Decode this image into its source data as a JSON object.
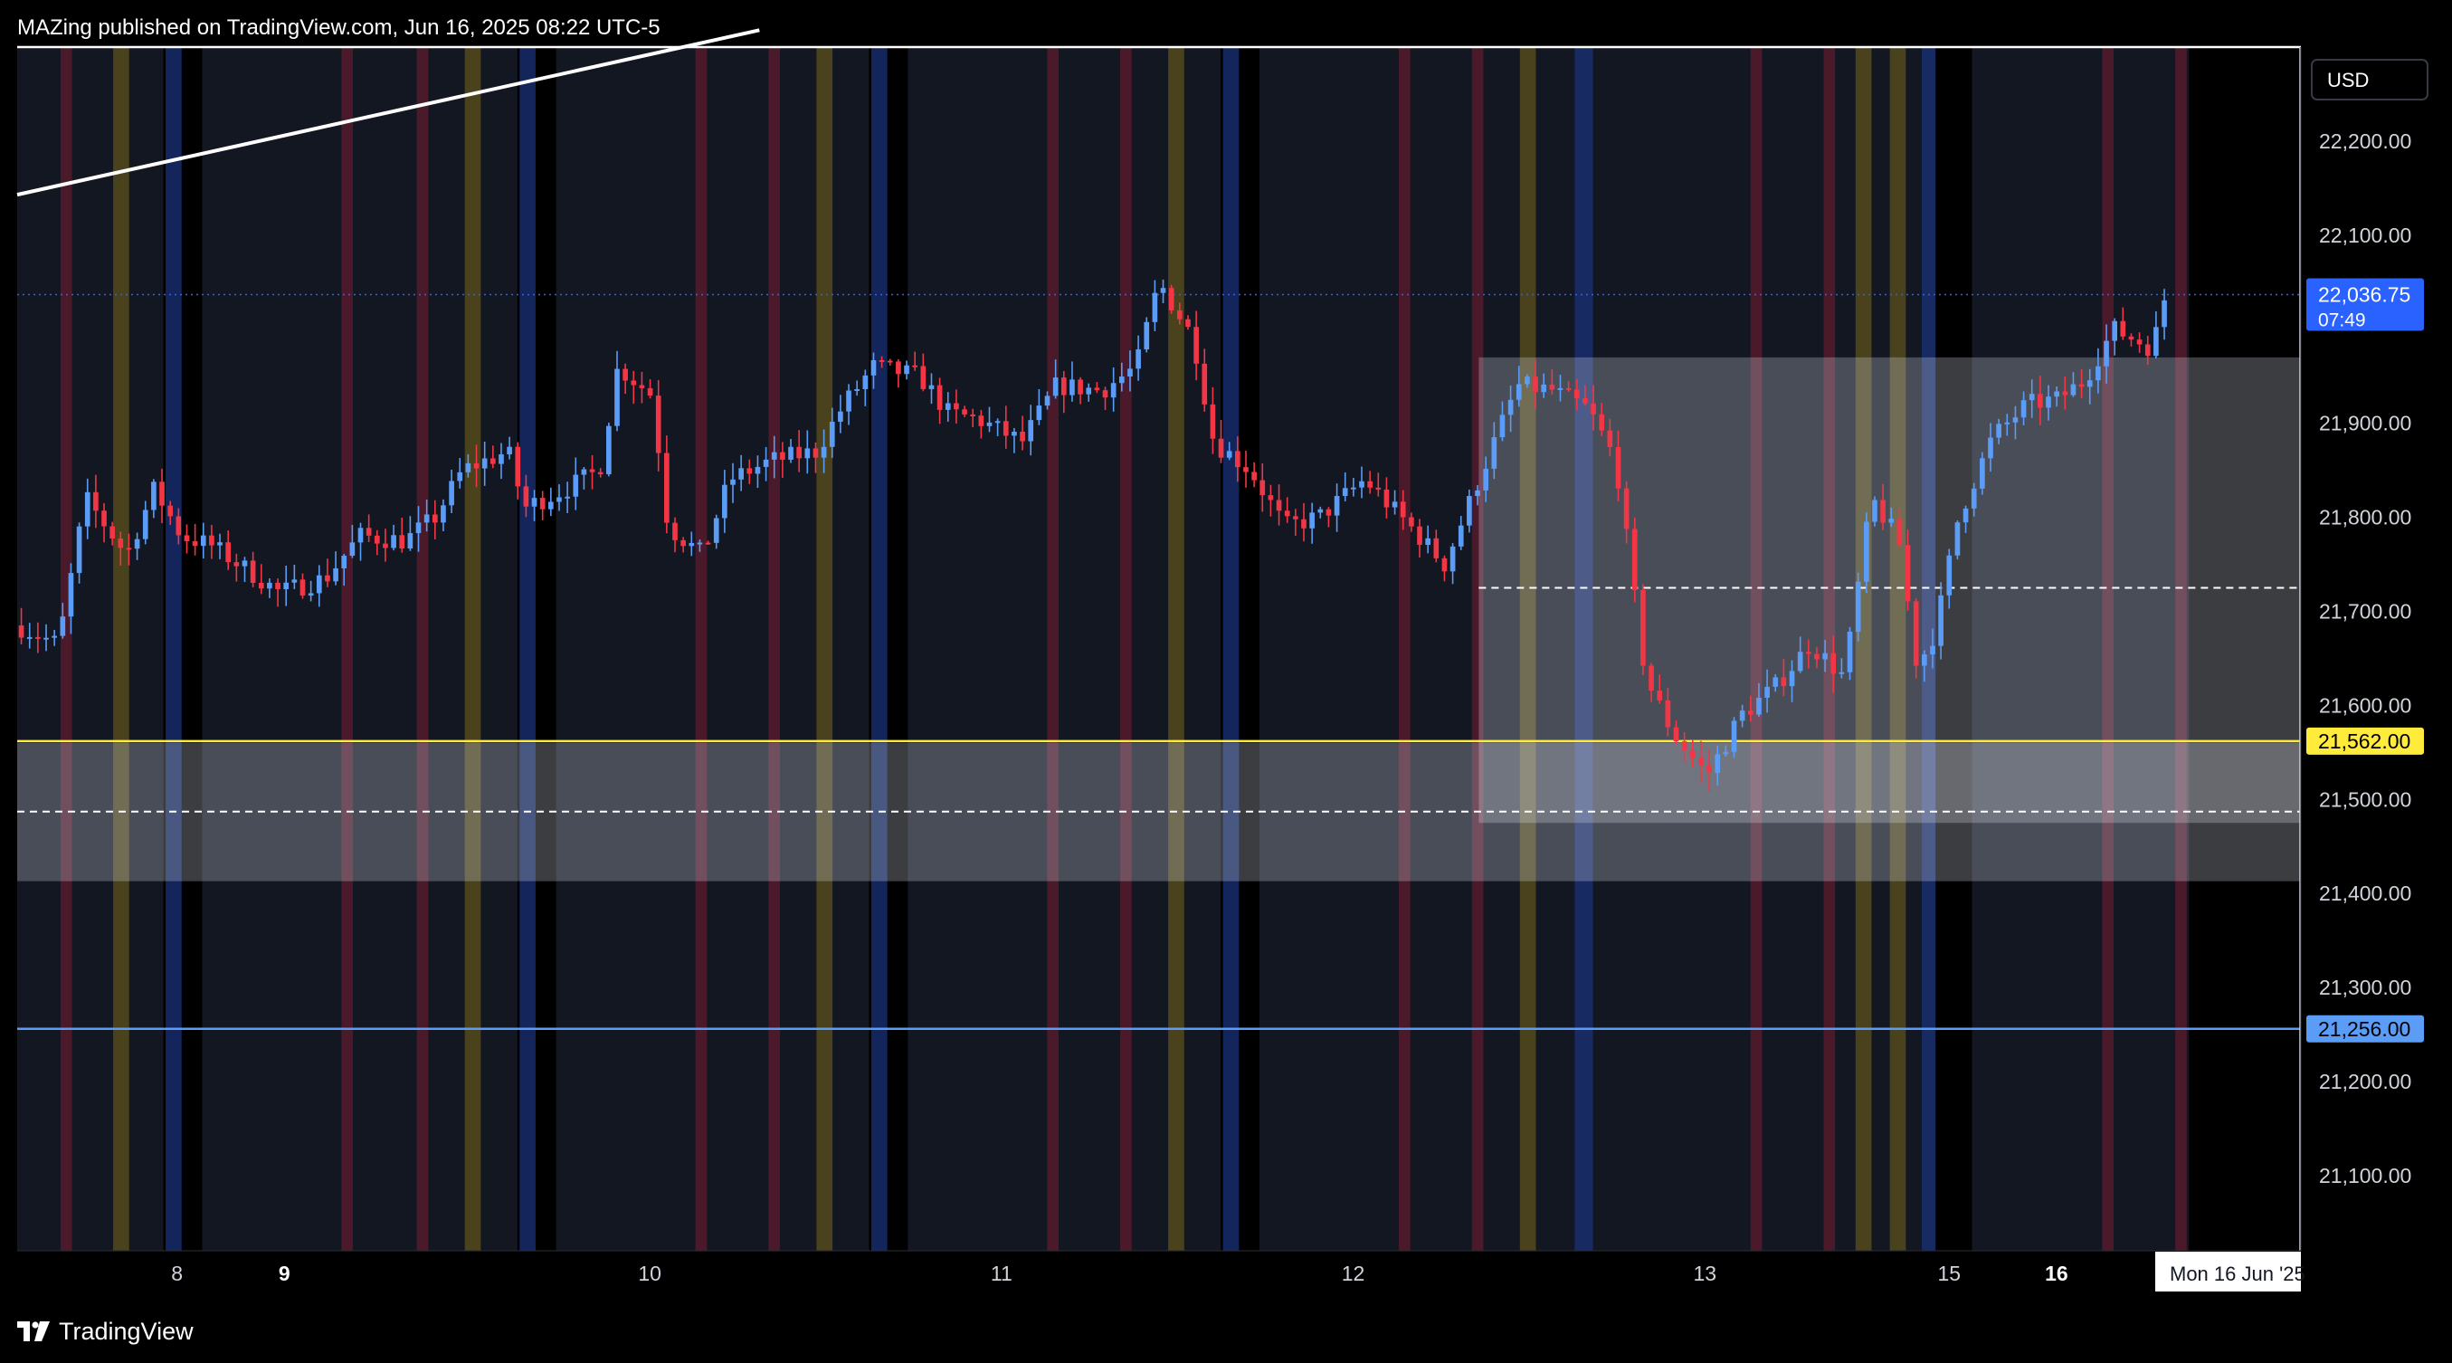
{
  "header": {
    "publish_line": "MAZing published on TradingView.com, Jun 16, 2025 08:22 UTC-5"
  },
  "footer": {
    "brand": "TradingView",
    "logo_icon": "tradingview-logo-icon"
  },
  "chart_data": {
    "type": "candlestick",
    "currency": "USD",
    "ylim": [
      21020,
      22300
    ],
    "y_ticks": [
      {
        "value": 22200,
        "label": "22,200.00"
      },
      {
        "value": 22100,
        "label": "22,100.00"
      },
      {
        "value": 21900,
        "label": "21,900.00"
      },
      {
        "value": 21800,
        "label": "21,800.00"
      },
      {
        "value": 21700,
        "label": "21,700.00"
      },
      {
        "value": 21600,
        "label": "21,600.00"
      },
      {
        "value": 21500,
        "label": "21,500.00"
      },
      {
        "value": 21400,
        "label": "21,400.00"
      },
      {
        "value": 21300,
        "label": "21,300.00"
      },
      {
        "value": 21200,
        "label": "21,200.00"
      },
      {
        "value": 21100,
        "label": "21,100.00"
      }
    ],
    "x_ticks": [
      {
        "t": 0.07,
        "label": "8",
        "bold": false
      },
      {
        "t": 0.117,
        "label": "9",
        "bold": true
      },
      {
        "t": 0.277,
        "label": "10",
        "bold": false
      },
      {
        "t": 0.431,
        "label": "11",
        "bold": false
      },
      {
        "t": 0.585,
        "label": "12",
        "bold": false
      },
      {
        "t": 0.739,
        "label": "13",
        "bold": false
      },
      {
        "t": 0.846,
        "label": "15",
        "bold": false
      },
      {
        "t": 0.893,
        "label": "16",
        "bold": true
      }
    ],
    "crosshair_date_label": "Mon 16 Jun '25",
    "last_price": {
      "value": 22036.75,
      "label": "22,036.75",
      "countdown": "07:49",
      "color": "#2962ff"
    },
    "horizontal_levels": [
      {
        "value": 22300,
        "color": "#ffffff",
        "style": "solid"
      },
      {
        "value": 21562,
        "label": "21,562.00",
        "color": "#ffeb3b",
        "style": "solid"
      },
      {
        "value": 21256,
        "label": "21,256.00",
        "color": "#5b9cf6",
        "style": "solid"
      },
      {
        "value": 21725,
        "color": "#ffffff",
        "style": "dashed",
        "t_start": 0.64
      },
      {
        "value": 21487,
        "color": "#ffffff",
        "style": "dashed",
        "t_start": 0
      }
    ],
    "zones": [
      {
        "t_start": 0,
        "t_end": 1,
        "y_top": 21560,
        "y_bottom": 21413
      },
      {
        "t_start": 0.64,
        "t_end": 1,
        "y_top": 21970,
        "y_bottom": 21475
      }
    ],
    "trendline": {
      "t1": 0,
      "y1": 22143,
      "t2": 0.325,
      "y2": 22318,
      "color": "#ffffff"
    },
    "session_bands": [
      {
        "t": 0.019,
        "w": 0.005,
        "color": "red"
      },
      {
        "t": 0.042,
        "w": 0.007,
        "color": "gold"
      },
      {
        "t": 0.067,
        "w": 0.007,
        "color": "gold"
      },
      {
        "t": 0.066,
        "w": 0.001,
        "color": "blue"
      },
      {
        "t": 0.064,
        "w": 0.017,
        "color": "black"
      },
      {
        "t": 0.065,
        "w": 0.007,
        "color": "blue"
      },
      {
        "t": 0.142,
        "w": 0.005,
        "color": "red"
      },
      {
        "t": 0.175,
        "w": 0.005,
        "color": "red"
      },
      {
        "t": 0.196,
        "w": 0.007,
        "color": "gold"
      },
      {
        "t": 0.219,
        "w": 0.017,
        "color": "black"
      },
      {
        "t": 0.22,
        "w": 0.007,
        "color": "blue"
      },
      {
        "t": 0.297,
        "w": 0.005,
        "color": "red"
      },
      {
        "t": 0.329,
        "w": 0.005,
        "color": "red"
      },
      {
        "t": 0.35,
        "w": 0.007,
        "color": "gold"
      },
      {
        "t": 0.373,
        "w": 0.017,
        "color": "black"
      },
      {
        "t": 0.374,
        "w": 0.007,
        "color": "blue"
      },
      {
        "t": 0.451,
        "w": 0.005,
        "color": "red"
      },
      {
        "t": 0.483,
        "w": 0.005,
        "color": "red"
      },
      {
        "t": 0.504,
        "w": 0.007,
        "color": "gold"
      },
      {
        "t": 0.527,
        "w": 0.017,
        "color": "black"
      },
      {
        "t": 0.528,
        "w": 0.007,
        "color": "blue"
      },
      {
        "t": 0.605,
        "w": 0.005,
        "color": "red"
      },
      {
        "t": 0.637,
        "w": 0.005,
        "color": "red"
      },
      {
        "t": 0.658,
        "w": 0.007,
        "color": "gold"
      },
      {
        "t": 0.682,
        "w": 0.008,
        "color": "blue"
      },
      {
        "t": 0.759,
        "w": 0.005,
        "color": "red"
      },
      {
        "t": 0.791,
        "w": 0.005,
        "color": "red"
      },
      {
        "t": 0.805,
        "w": 0.007,
        "color": "gold"
      },
      {
        "t": 0.82,
        "w": 0.007,
        "color": "gold"
      },
      {
        "t": 0.834,
        "w": 0.007,
        "color": "blue"
      },
      {
        "t": 0.84,
        "w": 0.016,
        "color": "black"
      },
      {
        "t": 0.913,
        "w": 0.005,
        "color": "red"
      },
      {
        "t": 0.945,
        "w": 0.005,
        "color": "red"
      },
      {
        "t": 0.951,
        "w": 0.049,
        "color": "black"
      }
    ],
    "anchors": [
      [
        0.0,
        21685
      ],
      [
        0.018,
        21665
      ],
      [
        0.03,
        21820
      ],
      [
        0.048,
        21760
      ],
      [
        0.06,
        21830
      ],
      [
        0.072,
        21780
      ],
      [
        0.085,
        21770
      ],
      [
        0.1,
        21745
      ],
      [
        0.115,
        21720
      ],
      [
        0.135,
        21735
      ],
      [
        0.15,
        21780
      ],
      [
        0.17,
        21775
      ],
      [
        0.183,
        21800
      ],
      [
        0.195,
        21850
      ],
      [
        0.215,
        21870
      ],
      [
        0.222,
        21810
      ],
      [
        0.24,
        21830
      ],
      [
        0.255,
        21850
      ],
      [
        0.263,
        21960
      ],
      [
        0.278,
        21930
      ],
      [
        0.285,
        21790
      ],
      [
        0.3,
        21760
      ],
      [
        0.312,
        21840
      ],
      [
        0.33,
        21860
      ],
      [
        0.35,
        21870
      ],
      [
        0.362,
        21920
      ],
      [
        0.375,
        21960
      ],
      [
        0.395,
        21950
      ],
      [
        0.408,
        21910
      ],
      [
        0.42,
        21905
      ],
      [
        0.44,
        21880
      ],
      [
        0.455,
        21940
      ],
      [
        0.475,
        21935
      ],
      [
        0.49,
        21960
      ],
      [
        0.5,
        22050
      ],
      [
        0.515,
        21990
      ],
      [
        0.524,
        21880
      ],
      [
        0.54,
        21850
      ],
      [
        0.555,
        21790
      ],
      [
        0.57,
        21800
      ],
      [
        0.59,
        21840
      ],
      [
        0.61,
        21790
      ],
      [
        0.625,
        21750
      ],
      [
        0.64,
        21840
      ],
      [
        0.657,
        21940
      ],
      [
        0.672,
        21935
      ],
      [
        0.688,
        21915
      ],
      [
        0.7,
        21860
      ],
      [
        0.713,
        21630
      ],
      [
        0.725,
        21570
      ],
      [
        0.74,
        21525
      ],
      [
        0.755,
        21590
      ],
      [
        0.77,
        21620
      ],
      [
        0.785,
        21665
      ],
      [
        0.8,
        21630
      ],
      [
        0.812,
        21820
      ],
      [
        0.824,
        21775
      ],
      [
        0.832,
        21640
      ],
      [
        0.84,
        21680
      ],
      [
        0.85,
        21800
      ],
      [
        0.865,
        21885
      ],
      [
        0.88,
        21920
      ],
      [
        0.893,
        21925
      ],
      [
        0.905,
        21945
      ],
      [
        0.918,
        22000
      ],
      [
        0.935,
        21980
      ],
      [
        0.942,
        22050
      ]
    ]
  }
}
